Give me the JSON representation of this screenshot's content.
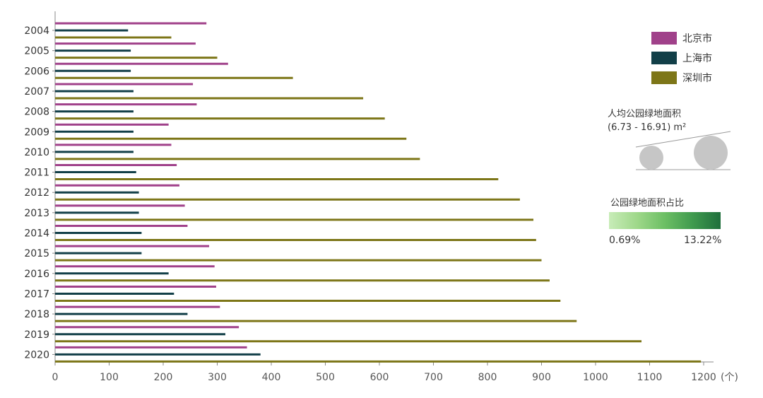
{
  "chart_data": {
    "type": "bar",
    "orientation": "horizontal",
    "categories": [
      "2004",
      "2005",
      "2006",
      "2007",
      "2008",
      "2009",
      "2010",
      "2011",
      "2012",
      "2013",
      "2014",
      "2015",
      "2016",
      "2017",
      "2018",
      "2019",
      "2020"
    ],
    "x_ticks": [
      "0",
      "100",
      "200",
      "300",
      "400",
      "500",
      "600",
      "700",
      "800",
      "900",
      "1000",
      "1100",
      "1200"
    ],
    "x_unit": "(个)",
    "xlim": [
      0,
      1200
    ],
    "grid": false,
    "series": [
      {
        "name": "北京市",
        "color": "#a0418a",
        "values": [
          280,
          260,
          320,
          255,
          262,
          210,
          215,
          225,
          230,
          240,
          245,
          285,
          295,
          298,
          305,
          340,
          355
        ],
        "bubble_size": [
          null,
          null,
          null,
          null,
          null,
          null,
          null,
          null,
          null,
          null,
          null,
          null,
          null,
          null,
          null,
          null,
          null
        ],
        "bubble_green_share": [
          null,
          null,
          null,
          null,
          null,
          null,
          null,
          null,
          null,
          null,
          null,
          null,
          null,
          null,
          null,
          null,
          null
        ]
      },
      {
        "name": "上海市",
        "color": "#123f48",
        "values": [
          135,
          140,
          140,
          145,
          145,
          145,
          145,
          150,
          155,
          155,
          160,
          160,
          210,
          220,
          245,
          315,
          380
        ],
        "bubble_size": [
          null,
          null,
          null,
          null,
          null,
          null,
          null,
          null,
          null,
          null,
          null,
          null,
          null,
          null,
          null,
          null,
          null
        ],
        "bubble_green_share": [
          null,
          null,
          null,
          null,
          null,
          null,
          null,
          null,
          null,
          null,
          null,
          null,
          null,
          null,
          null,
          null,
          null
        ]
      },
      {
        "name": "深圳市",
        "color": "#7d7618",
        "values": [
          215,
          300,
          440,
          570,
          610,
          650,
          675,
          820,
          860,
          885,
          890,
          900,
          915,
          935,
          965,
          1085,
          1195
        ],
        "bubble_size": [
          null,
          null,
          null,
          null,
          null,
          null,
          null,
          null,
          null,
          null,
          null,
          null,
          null,
          null,
          null,
          null,
          null
        ],
        "bubble_green_share": [
          null,
          null,
          null,
          null,
          null,
          null,
          null,
          null,
          null,
          null,
          null,
          null,
          null,
          null,
          null,
          null,
          null
        ]
      }
    ],
    "legend_placement": "top-right",
    "size_legend": {
      "title": "人均公园绿地面积",
      "range": "(6.73 - 16.91) m²"
    },
    "color_legend": {
      "title": "公园绿地面积占比",
      "min_label": "0.69%",
      "max_label": "13.22%",
      "colors": [
        "#c8ecb8",
        "#9fd88a",
        "#6cbf64",
        "#3f9a4e",
        "#1f6f3c"
      ]
    }
  }
}
